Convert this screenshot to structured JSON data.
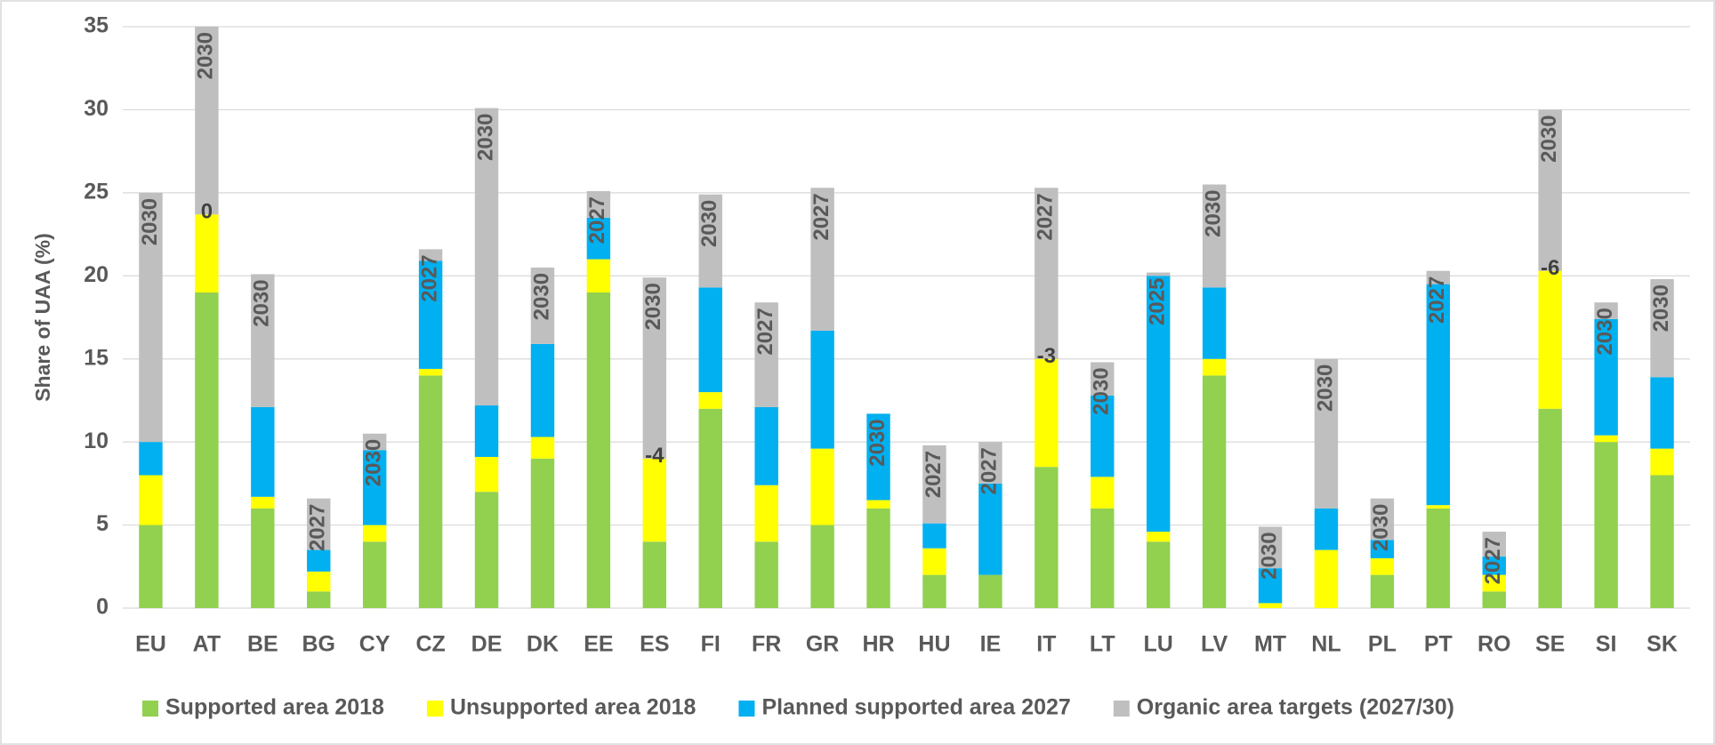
{
  "chart_data": {
    "type": "stacked_bar",
    "y_label": "Share of UAA (%)",
    "categories": [
      "EU",
      "AT",
      "BE",
      "BG",
      "CY",
      "CZ",
      "DE",
      "DK",
      "EE",
      "ES",
      "FI",
      "FR",
      "GR",
      "HR",
      "HU",
      "IE",
      "IT",
      "LT",
      "LU",
      "LV",
      "MT",
      "NL",
      "PL",
      "PT",
      "RO",
      "SE",
      "SI",
      "SK"
    ],
    "series": [
      {
        "name": "Supported area 2018",
        "color": "#92d050",
        "values": [
          5,
          19,
          6,
          1,
          4,
          14,
          7,
          9,
          19,
          4,
          12,
          4,
          5,
          6,
          2,
          2,
          8.5,
          6,
          4,
          14,
          0,
          0,
          2,
          6,
          1,
          12,
          10,
          8
        ]
      },
      {
        "name": "Unsupported area 2018",
        "color": "#ffff00",
        "values": [
          3,
          4.7,
          0.7,
          1.2,
          1,
          0.4,
          2.1,
          1.3,
          2,
          5,
          1,
          3.4,
          4.6,
          0.5,
          1.6,
          0,
          6.5,
          1.9,
          0.6,
          1,
          0.3,
          3.5,
          1,
          0.2,
          1,
          8.3,
          0.4,
          1.6
        ]
      },
      {
        "name": "Planned supported area 2027",
        "color": "#00b0f0",
        "values": [
          2,
          0,
          5.4,
          1.3,
          4.5,
          6.5,
          3.1,
          5.6,
          2.5,
          0,
          6.3,
          4.7,
          7.1,
          5.2,
          1.5,
          5.5,
          0,
          4.9,
          15.4,
          4.3,
          2.1,
          2.5,
          1.1,
          13.3,
          1.1,
          0,
          7,
          4.3
        ]
      },
      {
        "name": "Organic area targets (2027/30)",
        "color": "#bfbfbf",
        "values": [
          15,
          11.3,
          8,
          3.1,
          1,
          0.7,
          17.9,
          4.6,
          1.6,
          10.9,
          5.6,
          6.3,
          8.6,
          0,
          4.7,
          2.5,
          10.3,
          2,
          0.2,
          6.2,
          2.5,
          9,
          2.5,
          0.8,
          1.5,
          9.7,
          1,
          5.9
        ]
      }
    ],
    "target_labels": [
      "2030",
      "2030",
      "2030",
      "2027",
      "2030",
      "2027",
      "2030",
      "2030",
      "2027",
      "2030",
      "2030",
      "2027",
      "2027",
      "2030",
      "2027",
      "2027",
      "2027",
      "2030",
      "2025",
      "2030",
      "2030",
      "2030",
      "2030",
      "2027",
      "2027",
      "2030",
      "2030",
      "2030"
    ],
    "gap_labels": [
      null,
      0,
      null,
      null,
      null,
      null,
      null,
      null,
      null,
      -4,
      null,
      null,
      null,
      null,
      null,
      null,
      -3,
      null,
      null,
      null,
      null,
      null,
      null,
      null,
      null,
      -6,
      null,
      null
    ],
    "ylim": [
      0,
      35
    ],
    "yticks": [
      0,
      5,
      10,
      15,
      20,
      25,
      30,
      35
    ],
    "grid": true
  }
}
